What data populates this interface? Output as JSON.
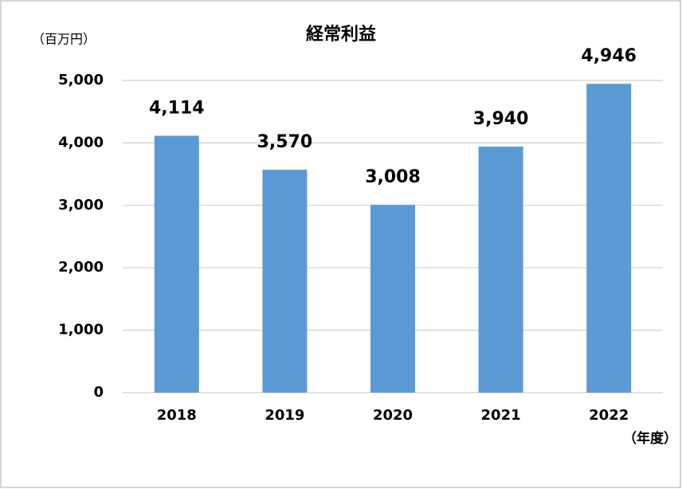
{
  "chart_data": {
    "type": "bar",
    "title": "経常利益",
    "ylabel": "（百万円）",
    "xlabel": "（年度）",
    "categories": [
      "2018",
      "2019",
      "2020",
      "2021",
      "2022"
    ],
    "values": [
      4114,
      3570,
      3008,
      3940,
      4946
    ],
    "value_labels": [
      "4,114",
      "3,570",
      "3,008",
      "3,940",
      "4,946"
    ],
    "color": "#5b9bd5",
    "ylim": [
      0,
      5000
    ],
    "yticks": [
      0,
      {
        "value": 1000,
        "label": "1,000"
      },
      {
        "value": 2000,
        "label": "2,000"
      },
      {
        "value": 3000,
        "label": "3,000"
      },
      {
        "value": 4000,
        "label": "4,000"
      },
      {
        "value": 5000,
        "label": "5,000"
      }
    ],
    "grid": true
  }
}
